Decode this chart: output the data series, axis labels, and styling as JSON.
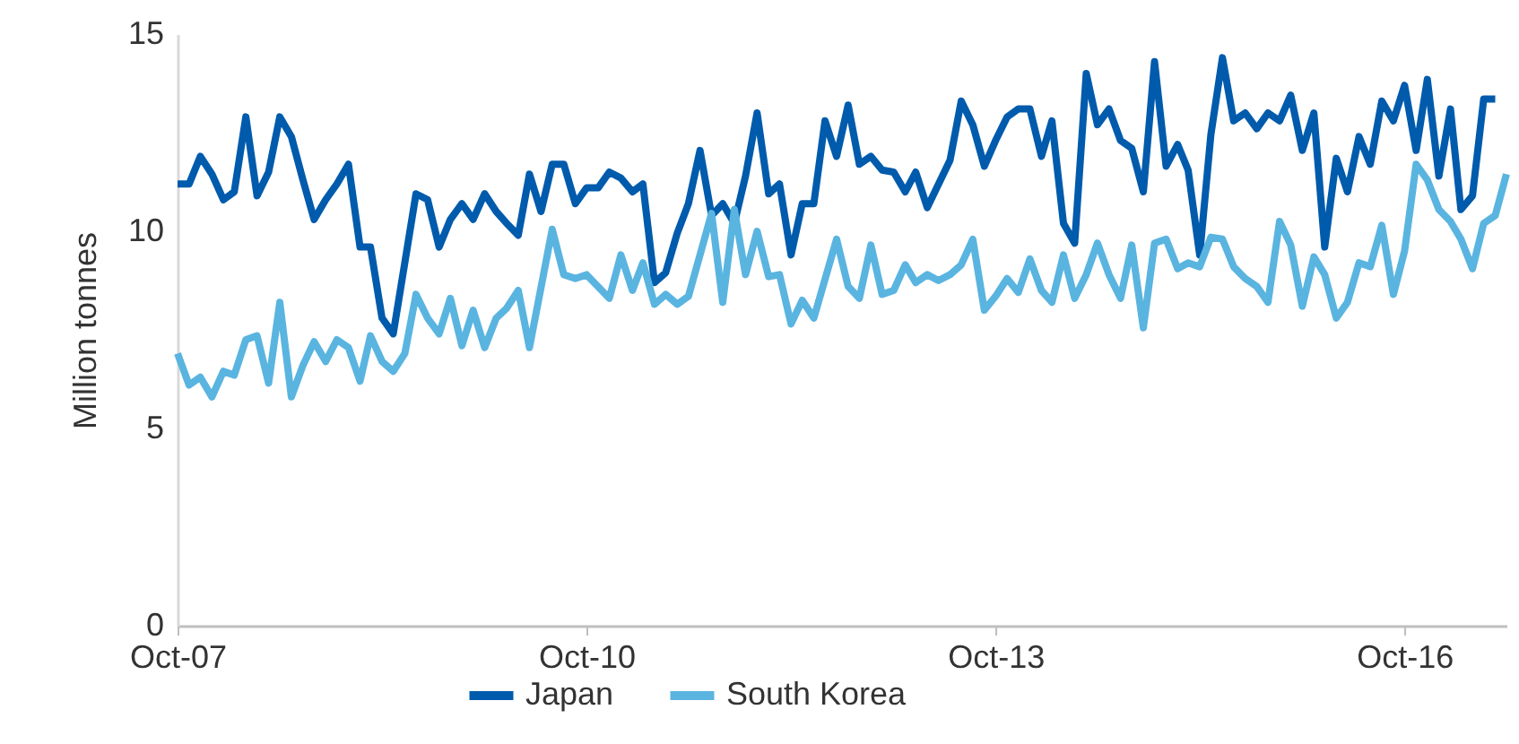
{
  "chart_data": {
    "type": "line",
    "ylabel": "Million tonnes",
    "xlim": [
      "2007-10",
      "2017-07"
    ],
    "ylim": [
      0,
      15
    ],
    "yticks": [
      0,
      5,
      10,
      15
    ],
    "xticks": [
      {
        "value": "2007-10",
        "label": "Oct-07"
      },
      {
        "value": "2010-10",
        "label": "Oct-10"
      },
      {
        "value": "2013-10",
        "label": "Oct-13"
      },
      {
        "value": "2016-10",
        "label": "Oct-16"
      }
    ],
    "grid": false,
    "legend": "bottom",
    "marker": "none",
    "line_style": "solid",
    "series": [
      {
        "name": "Japan",
        "color": "#005bac",
        "x": [
          "2007-10",
          "2007-11",
          "2007-12",
          "2008-01",
          "2008-02",
          "2008-03",
          "2008-04",
          "2008-05",
          "2008-06",
          "2008-07",
          "2008-08",
          "2008-09",
          "2008-10",
          "2008-11",
          "2008-12",
          "2009-01",
          "2009-02",
          "2009-03",
          "2009-04",
          "2009-05",
          "2009-07",
          "2009-08",
          "2009-09",
          "2009-10",
          "2009-11",
          "2009-12",
          "2010-01",
          "2010-02",
          "2010-03",
          "2010-04",
          "2010-05",
          "2010-06",
          "2010-07",
          "2010-08",
          "2010-09",
          "2010-10",
          "2010-11",
          "2010-12",
          "2011-01",
          "2011-02",
          "2011-03",
          "2011-04",
          "2011-05",
          "2011-06",
          "2011-07",
          "2011-08",
          "2011-09",
          "2011-10",
          "2011-11",
          "2011-12",
          "2012-01",
          "2012-02",
          "2012-03",
          "2012-04",
          "2012-05",
          "2012-06",
          "2012-07",
          "2012-08",
          "2012-09",
          "2012-10",
          "2012-11",
          "2012-12",
          "2013-01",
          "2013-02",
          "2013-03",
          "2013-04",
          "2013-06",
          "2013-07",
          "2013-08",
          "2013-09",
          "2013-10",
          "2013-11",
          "2013-12",
          "2014-01",
          "2014-02",
          "2014-03",
          "2014-04",
          "2014-05",
          "2014-06",
          "2014-07",
          "2014-08",
          "2014-09",
          "2014-10",
          "2014-11",
          "2014-12",
          "2015-01",
          "2015-02",
          "2015-03",
          "2015-04",
          "2015-05",
          "2015-06",
          "2015-07",
          "2015-08",
          "2015-09",
          "2015-10",
          "2015-11",
          "2015-12",
          "2016-01",
          "2016-02",
          "2016-03",
          "2016-04",
          "2016-05",
          "2016-06",
          "2016-07",
          "2016-08",
          "2016-09",
          "2016-10",
          "2016-11",
          "2016-12",
          "2017-01",
          "2017-02",
          "2017-03",
          "2017-04",
          "2017-05",
          "2017-06"
        ],
        "values": [
          11.2,
          11.2,
          11.9,
          11.45,
          10.8,
          11.0,
          12.9,
          10.9,
          11.5,
          12.9,
          12.4,
          11.3,
          10.3,
          10.8,
          11.2,
          11.7,
          9.6,
          9.6,
          7.8,
          7.4,
          10.95,
          10.8,
          9.6,
          10.3,
          10.7,
          10.3,
          10.95,
          10.5,
          10.2,
          9.9,
          11.45,
          10.5,
          11.7,
          11.7,
          10.7,
          11.1,
          11.1,
          11.5,
          11.35,
          11.0,
          11.2,
          8.7,
          8.95,
          9.95,
          10.7,
          12.05,
          10.4,
          10.7,
          10.2,
          11.4,
          13.0,
          10.95,
          11.2,
          9.4,
          10.7,
          10.7,
          12.8,
          11.9,
          13.2,
          11.7,
          11.9,
          11.55,
          11.5,
          11.0,
          11.5,
          10.6,
          11.8,
          13.3,
          12.7,
          11.65,
          12.3,
          12.9,
          13.1,
          13.1,
          11.9,
          12.8,
          10.2,
          9.7,
          14.0,
          12.7,
          13.1,
          12.3,
          12.1,
          11.0,
          14.3,
          11.65,
          12.2,
          11.55,
          9.4,
          12.45,
          14.4,
          12.8,
          13.0,
          12.6,
          13.0,
          12.8,
          13.45,
          12.05,
          13.0,
          9.6,
          11.85,
          11.0,
          12.4,
          11.7,
          13.3,
          12.8,
          13.7,
          12.05,
          13.85,
          11.4,
          13.1,
          10.55,
          10.9,
          13.35,
          13.35
        ]
      },
      {
        "name": "South Korea",
        "color": "#5ab4e0",
        "x": [
          "2007-10",
          "2007-11",
          "2007-12",
          "2008-01",
          "2008-02",
          "2008-03",
          "2008-04",
          "2008-05",
          "2008-06",
          "2008-07",
          "2008-08",
          "2008-09",
          "2008-10",
          "2008-11",
          "2008-12",
          "2009-01",
          "2009-02",
          "2009-03",
          "2009-04",
          "2009-05",
          "2009-06",
          "2009-07",
          "2009-08",
          "2009-09",
          "2009-10",
          "2009-11",
          "2009-12",
          "2010-01",
          "2010-02",
          "2010-03",
          "2010-04",
          "2010-05",
          "2010-07",
          "2010-08",
          "2010-09",
          "2010-10",
          "2010-12",
          "2011-01",
          "2011-02",
          "2011-03",
          "2011-04",
          "2011-05",
          "2011-06",
          "2011-07",
          "2011-09",
          "2011-10",
          "2011-11",
          "2011-12",
          "2012-01",
          "2012-02",
          "2012-03",
          "2012-04",
          "2012-05",
          "2012-06",
          "2012-08",
          "2012-09",
          "2012-10",
          "2012-11",
          "2012-12",
          "2013-01",
          "2013-02",
          "2013-03",
          "2013-04",
          "2013-05",
          "2013-06",
          "2013-07",
          "2013-08",
          "2013-09",
          "2013-10",
          "2013-11",
          "2013-12",
          "2014-01",
          "2014-02",
          "2014-03",
          "2014-04",
          "2014-05",
          "2014-06",
          "2014-07",
          "2014-08",
          "2014-09",
          "2014-10",
          "2014-11",
          "2014-12",
          "2015-01",
          "2015-02",
          "2015-03",
          "2015-04",
          "2015-05",
          "2015-06",
          "2015-07",
          "2015-08",
          "2015-09",
          "2015-10",
          "2015-11",
          "2015-12",
          "2016-01",
          "2016-02",
          "2016-03",
          "2016-04",
          "2016-05",
          "2016-06",
          "2016-07",
          "2016-08",
          "2016-09",
          "2016-10",
          "2016-11",
          "2016-12",
          "2017-01",
          "2017-02",
          "2017-03",
          "2017-04",
          "2017-05",
          "2017-06",
          "2017-07"
        ],
        "values": [
          6.9,
          6.1,
          6.3,
          5.8,
          6.45,
          6.35,
          7.25,
          7.35,
          6.15,
          8.2,
          5.8,
          6.6,
          7.2,
          6.7,
          7.25,
          7.05,
          6.2,
          7.35,
          6.7,
          6.45,
          6.9,
          8.4,
          7.8,
          7.4,
          8.3,
          7.1,
          8.0,
          7.05,
          7.8,
          8.05,
          8.5,
          7.05,
          10.05,
          8.9,
          8.8,
          8.9,
          8.3,
          9.4,
          8.5,
          9.2,
          8.15,
          8.4,
          8.15,
          8.35,
          10.45,
          8.2,
          10.55,
          8.9,
          10.0,
          8.85,
          8.9,
          7.65,
          8.25,
          7.8,
          9.8,
          8.6,
          8.3,
          9.65,
          8.4,
          8.5,
          9.15,
          8.7,
          8.9,
          8.75,
          8.9,
          9.15,
          9.8,
          8.0,
          8.35,
          8.8,
          8.45,
          9.3,
          8.5,
          8.2,
          9.4,
          8.3,
          8.9,
          9.7,
          8.9,
          8.3,
          9.65,
          7.55,
          9.7,
          9.8,
          9.05,
          9.2,
          9.1,
          9.85,
          9.8,
          9.1,
          8.8,
          8.6,
          8.2,
          10.25,
          9.65,
          8.1,
          9.35,
          8.9,
          7.8,
          8.2,
          9.2,
          9.1,
          10.15,
          8.4,
          9.5,
          11.7,
          11.3,
          10.55,
          10.25,
          9.8,
          9.05,
          10.2,
          10.4,
          11.45
        ]
      }
    ]
  }
}
